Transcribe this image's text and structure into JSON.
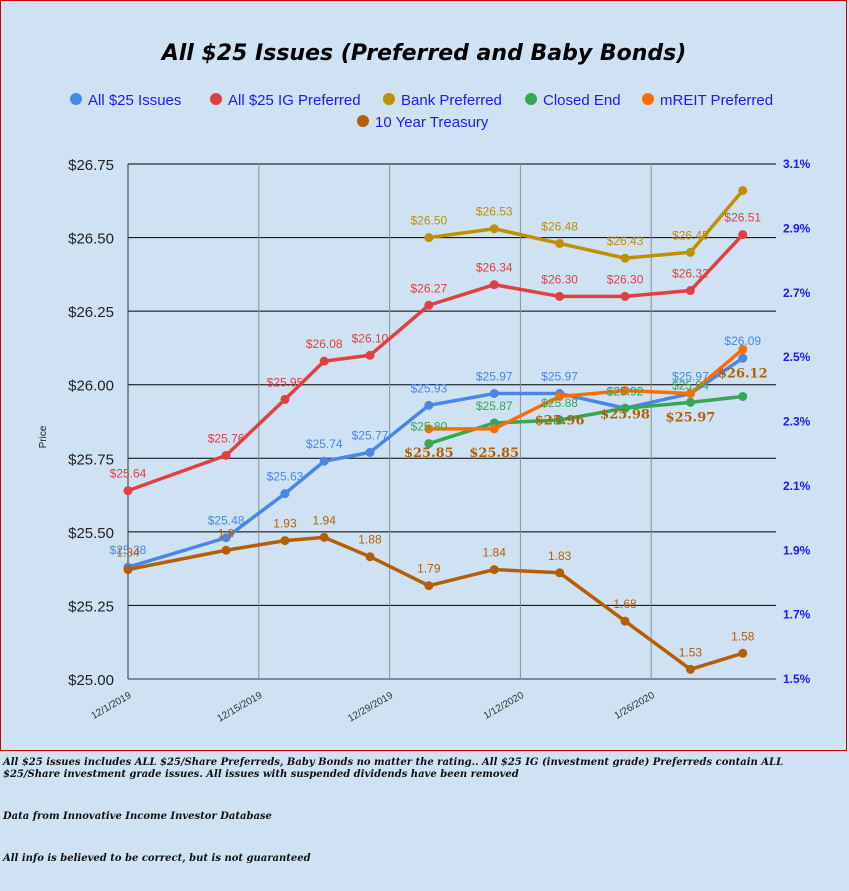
{
  "chart_data": {
    "type": "line",
    "title": "All $25 Issues (Preferred and Baby Bonds)",
    "ylabel": "Price",
    "ylim": [
      25.0,
      26.75
    ],
    "y_ticks": [
      "$25.00",
      "$25.25",
      "$25.50",
      "$25.75",
      "$26.00",
      "$26.25",
      "$26.50",
      "$26.75"
    ],
    "y2lim": [
      1.5,
      3.1
    ],
    "y2_ticks": [
      "1.5%",
      "1.7%",
      "1.9%",
      "2.1%",
      "2.3%",
      "2.5%",
      "2.7%",
      "2.9%",
      "3.1%"
    ],
    "x": [
      "12/1/2019",
      "12/8/2019",
      "12/15/2019",
      "12/22/2019",
      "12/29/2019",
      "1/5/2020",
      "1/12/2020",
      "1/19/2020",
      "1/26/2020",
      "2/2/2020",
      "2/9/2020"
    ],
    "x_tick_labels": [
      "12/1/2019",
      "12/15/2019",
      "12/29/2019",
      "1/12/2020",
      "1/26/2020"
    ],
    "legend_position": "top",
    "grid": true,
    "series": [
      {
        "name": "All $25 Issues",
        "color": "#4a86e8",
        "axis": "left",
        "x": [
          0,
          1.5,
          2.4,
          3,
          3.7,
          4.6,
          5.6,
          6.6,
          7.6,
          8.6,
          9.4
        ],
        "values": [
          25.38,
          25.48,
          25.63,
          25.74,
          25.77,
          25.93,
          25.97,
          25.97,
          25.92,
          25.97,
          26.09
        ],
        "labels": [
          "$25.38",
          "$25.48",
          "$25.63",
          "$25.74",
          "$25.77",
          "$25.93",
          "$25.97",
          "$25.97",
          "$25.92",
          "$25.97",
          "$26.09"
        ]
      },
      {
        "name": "All $25 IG Preferred",
        "color": "#e04040",
        "axis": "left",
        "x": [
          0,
          1.5,
          2.4,
          3,
          3.7,
          4.6,
          5.6,
          6.6,
          7.6,
          8.6,
          9.4
        ],
        "values": [
          25.64,
          25.76,
          25.95,
          26.08,
          26.1,
          26.27,
          26.34,
          26.3,
          26.3,
          26.32,
          26.51
        ],
        "labels": [
          "$25.64",
          "$25.76",
          "$25.95",
          "$26.08",
          "$26.10",
          "$26.27",
          "$26.34",
          "$26.30",
          "$26.30",
          "$26.32",
          "$26.51"
        ]
      },
      {
        "name": "Bank Preferred",
        "color": "#bf9000",
        "axis": "left",
        "x": [
          4.6,
          5.6,
          6.6,
          7.6,
          8.6,
          9.4
        ],
        "values": [
          26.5,
          26.53,
          26.48,
          26.43,
          26.45,
          26.66
        ],
        "labels": [
          "$26.50",
          "$26.53",
          "$26.48",
          "$26.43",
          "$26.45",
          ""
        ]
      },
      {
        "name": "Closed End",
        "color": "#34a853",
        "axis": "left",
        "x": [
          4.6,
          5.6,
          6.6,
          7.6,
          8.6,
          9.4
        ],
        "values": [
          25.8,
          25.87,
          25.88,
          25.92,
          25.94,
          25.96
        ],
        "labels": [
          "$25.80",
          "$25.87",
          "$25.88",
          "$25.92",
          "$25.94",
          ""
        ]
      },
      {
        "name": "mREIT Preferred",
        "color": "#ff6d01",
        "axis": "left",
        "x": [
          4.6,
          5.6,
          6.6,
          7.6,
          8.6,
          9.4
        ],
        "values": [
          25.85,
          25.85,
          25.96,
          25.98,
          25.97,
          26.12
        ],
        "labels": [
          "$25.85",
          "$25.85",
          "$25.96",
          "$25.98",
          "$25.97",
          "$26.12"
        ]
      },
      {
        "name": "10 Year Treasury",
        "color": "#b45f06",
        "axis": "right",
        "x": [
          0,
          1.5,
          2.4,
          3,
          3.7,
          4.6,
          5.6,
          6.6,
          7.6,
          8.6,
          9.4
        ],
        "values": [
          1.84,
          1.9,
          1.93,
          1.94,
          1.88,
          1.79,
          1.84,
          1.83,
          1.68,
          1.53,
          1.58
        ],
        "labels": [
          "1.84",
          "1.9",
          "1.93",
          "1.94",
          "1.88",
          "1.79",
          "1.84",
          "1.83",
          "1.68",
          "1.53",
          "1.58"
        ]
      }
    ]
  },
  "notes": {
    "line1": "All $25 issues includes ALL $25/Share Preferreds, Baby Bonds no matter the rating..  All $25 IG (investment grade) Preferreds contain ALL $25/Share investment grade issues.  All issues with suspended dividends have been removed",
    "line2": "Data from Innovative Income Investor Database",
    "line3": "All info is believed to be correct, but is not guaranteed"
  }
}
